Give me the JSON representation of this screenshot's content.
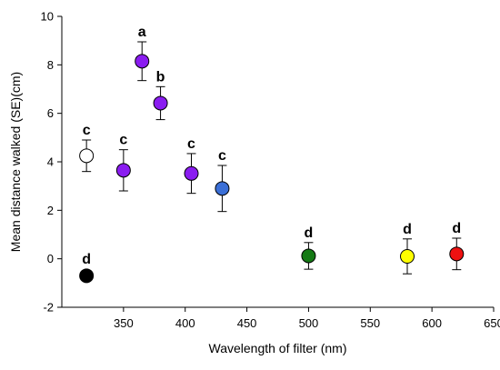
{
  "chart_data": {
    "type": "scatter",
    "title": "",
    "xlabel": "Wavelength of filter (nm)",
    "ylabel": "Mean distance walked (SE)(cm)",
    "xlim": [
      300,
      650
    ],
    "ylim": [
      -2,
      10
    ],
    "xticks": [
      350,
      400,
      450,
      500,
      550,
      600,
      650
    ],
    "yticks": [
      -2,
      0,
      2,
      4,
      6,
      8,
      10
    ],
    "grid": false,
    "legend": "none",
    "points": [
      {
        "x": 320,
        "y": -0.7,
        "err": 0,
        "letter": "d",
        "color": "#000000"
      },
      {
        "x": 320,
        "y": 4.25,
        "err": 0.65,
        "letter": "c",
        "color": "#ffffff"
      },
      {
        "x": 350,
        "y": 3.65,
        "err": 0.85,
        "letter": "c",
        "color": "#8a1cf0"
      },
      {
        "x": 365,
        "y": 8.15,
        "err": 0.8,
        "letter": "a",
        "color": "#8a1cf0"
      },
      {
        "x": 380,
        "y": 6.42,
        "err": 0.68,
        "letter": "b",
        "color": "#8a1cf0"
      },
      {
        "x": 405,
        "y": 3.52,
        "err": 0.82,
        "letter": "c",
        "color": "#8a1cf0"
      },
      {
        "x": 430,
        "y": 2.9,
        "err": 0.95,
        "letter": "c",
        "color": "#3b6fd6"
      },
      {
        "x": 500,
        "y": 0.12,
        "err": 0.55,
        "letter": "d",
        "color": "#157a15"
      },
      {
        "x": 580,
        "y": 0.1,
        "err": 0.72,
        "letter": "d",
        "color": "#ffff00"
      },
      {
        "x": 620,
        "y": 0.2,
        "err": 0.65,
        "letter": "d",
        "color": "#ee1111"
      }
    ]
  }
}
